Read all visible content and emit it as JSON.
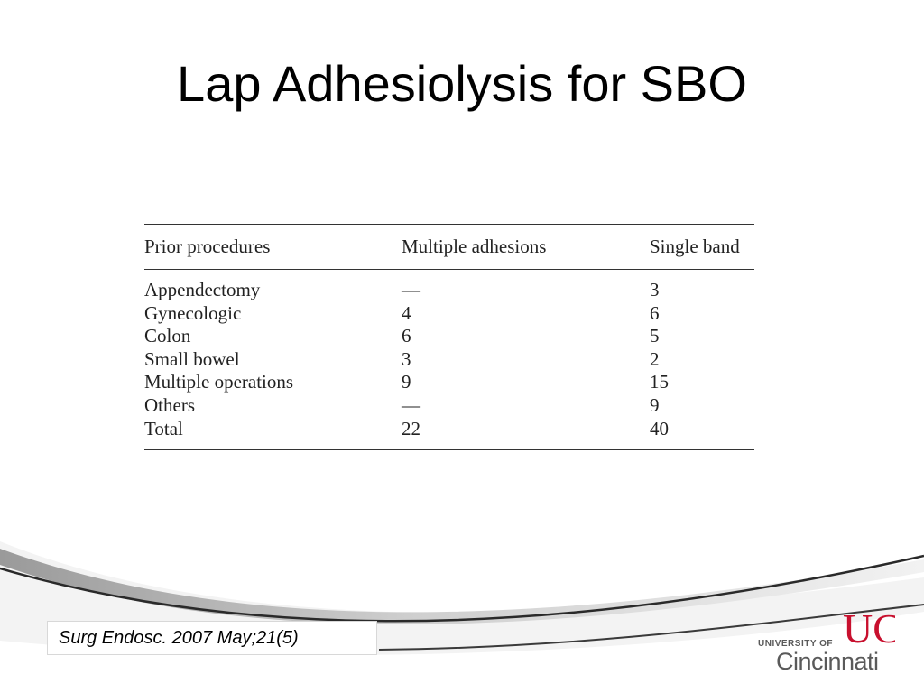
{
  "slide": {
    "title": "Lap Adhesiolysis for SBO",
    "citation": "Surg Endosc. 2007 May;21(5)"
  },
  "table": {
    "headers": [
      "Prior procedures",
      "Multiple adhesions",
      "Single band"
    ],
    "rows": [
      [
        "Appendectomy",
        "—",
        "3"
      ],
      [
        "Gynecologic",
        "4",
        "6"
      ],
      [
        "Colon",
        "6",
        "5"
      ],
      [
        "Small bowel",
        "3",
        "2"
      ],
      [
        "Multiple operations",
        "9",
        "15"
      ],
      [
        "Others",
        "—",
        "9"
      ],
      [
        "Total",
        "22",
        "40"
      ]
    ]
  },
  "logo": {
    "line1": "UNIVERSITY OF",
    "line2": "Cincinnati",
    "mark": "UC",
    "color": "#c8102e"
  }
}
